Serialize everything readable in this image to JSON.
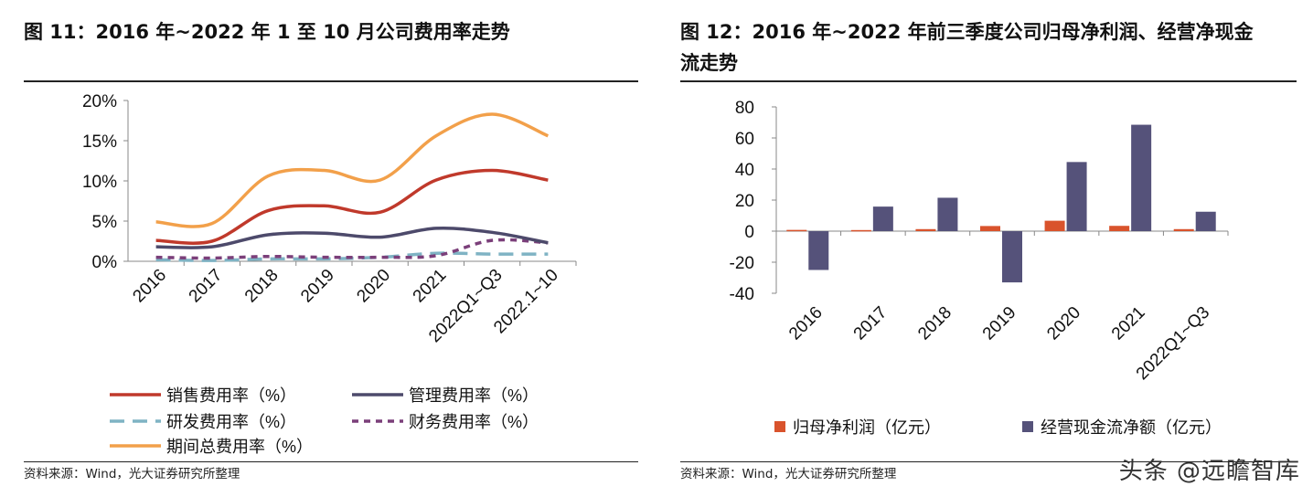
{
  "left": {
    "title": "图 11：2016 年~2022 年 1 至 10 月公司费用率走势",
    "source": "资料来源：Wind，光大证券研究所整理"
  },
  "right": {
    "title_line1": "图 12：2016 年~2022 年前三季度公司归母净利润、经营净现金",
    "title_line2": "流走势",
    "source": "资料来源：Wind，光大证券研究所整理"
  },
  "watermark": "头条 @远瞻智库",
  "chart_data": [
    {
      "type": "line",
      "categories": [
        "2016",
        "2017",
        "2018",
        "2019",
        "2020",
        "2021",
        "2022Q1~Q3",
        "2022.1~10"
      ],
      "yticks": [
        "0%",
        "5%",
        "10%",
        "15%",
        "20%"
      ],
      "ylim": [
        0,
        20
      ],
      "series": [
        {
          "name": "销售费用率（%）",
          "color": "#c0392b",
          "dash": "solid",
          "values": [
            2.6,
            2.5,
            6.3,
            6.9,
            6.1,
            10.1,
            11.3,
            10.1
          ]
        },
        {
          "name": "管理费用率（%）",
          "color": "#4d4a6b",
          "dash": "solid",
          "values": [
            1.8,
            1.8,
            3.3,
            3.5,
            3.0,
            4.1,
            3.6,
            2.3
          ]
        },
        {
          "name": "研发费用率（%）",
          "color": "#7fb3c4",
          "dash": "long",
          "values": [
            0.2,
            0.1,
            0.3,
            0.3,
            0.5,
            1.0,
            0.9,
            0.9
          ]
        },
        {
          "name": "财务费用率（%）",
          "color": "#7b3f7a",
          "dash": "short",
          "values": [
            0.5,
            0.4,
            0.6,
            0.5,
            0.5,
            0.7,
            2.6,
            2.3
          ]
        },
        {
          "name": "期间总费用率（%）",
          "color": "#f2a04a",
          "dash": "solid",
          "values": [
            4.9,
            4.7,
            10.6,
            11.3,
            10.1,
            15.6,
            18.3,
            15.6
          ]
        }
      ]
    },
    {
      "type": "bar",
      "categories": [
        "2016",
        "2017",
        "2018",
        "2019",
        "2020",
        "2021",
        "2022Q1~Q3"
      ],
      "yticks": [
        "-40",
        "-20",
        "0",
        "20",
        "40",
        "60",
        "80"
      ],
      "ylim": [
        -40,
        80
      ],
      "series": [
        {
          "name": "归母净利润（亿元）",
          "color": "#d9532c",
          "values": [
            0.8,
            0.7,
            1.3,
            3.3,
            6.7,
            3.4,
            1.3
          ]
        },
        {
          "name": "经营现金流净额（亿元）",
          "color": "#55527a",
          "values": [
            -25,
            15.8,
            21.5,
            -33,
            44.5,
            68.5,
            12.5
          ]
        }
      ]
    }
  ]
}
